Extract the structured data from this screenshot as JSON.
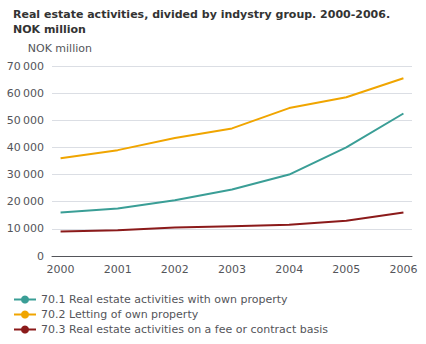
{
  "chart_data": {
    "type": "line",
    "title": "Real estate activities, divided by indystry group. 2000-2006.",
    "subtitle": "NOK million",
    "y_label": "NOK million",
    "x": [
      2000,
      2001,
      2002,
      2003,
      2004,
      2005,
      2006
    ],
    "xlim": [
      1999.85,
      2006.15
    ],
    "xticks": [
      2000,
      2001,
      2002,
      2003,
      2004,
      2005,
      2006
    ],
    "series": [
      {
        "name": "70.1 Real estate activities with own property",
        "color": "#3a9e96",
        "values": [
          16000,
          17500,
          20500,
          24500,
          30000,
          40000,
          52500
        ]
      },
      {
        "name": "70.2 Letting of own property",
        "color": "#f0a500",
        "values": [
          36000,
          39000,
          43500,
          47000,
          54500,
          58500,
          65500
        ]
      },
      {
        "name": "70.3 Real estate activities on a fee or contract basis",
        "color": "#8b1a1a",
        "values": [
          9000,
          9500,
          10500,
          11000,
          11500,
          13000,
          16000
        ]
      }
    ],
    "ylim": [
      0,
      70000
    ],
    "yticks": [
      0,
      {
        "value": 10000,
        "label": "10 000"
      },
      {
        "value": 20000,
        "label": "20 000"
      },
      {
        "value": 30000,
        "label": "30 000"
      },
      {
        "value": 40000,
        "label": "40 000"
      },
      {
        "value": 50000,
        "label": "50 000"
      },
      {
        "value": 60000,
        "label": "60 000"
      },
      {
        "value": 70000,
        "label": "70 000"
      }
    ],
    "grid": true,
    "legend": "bottom"
  }
}
